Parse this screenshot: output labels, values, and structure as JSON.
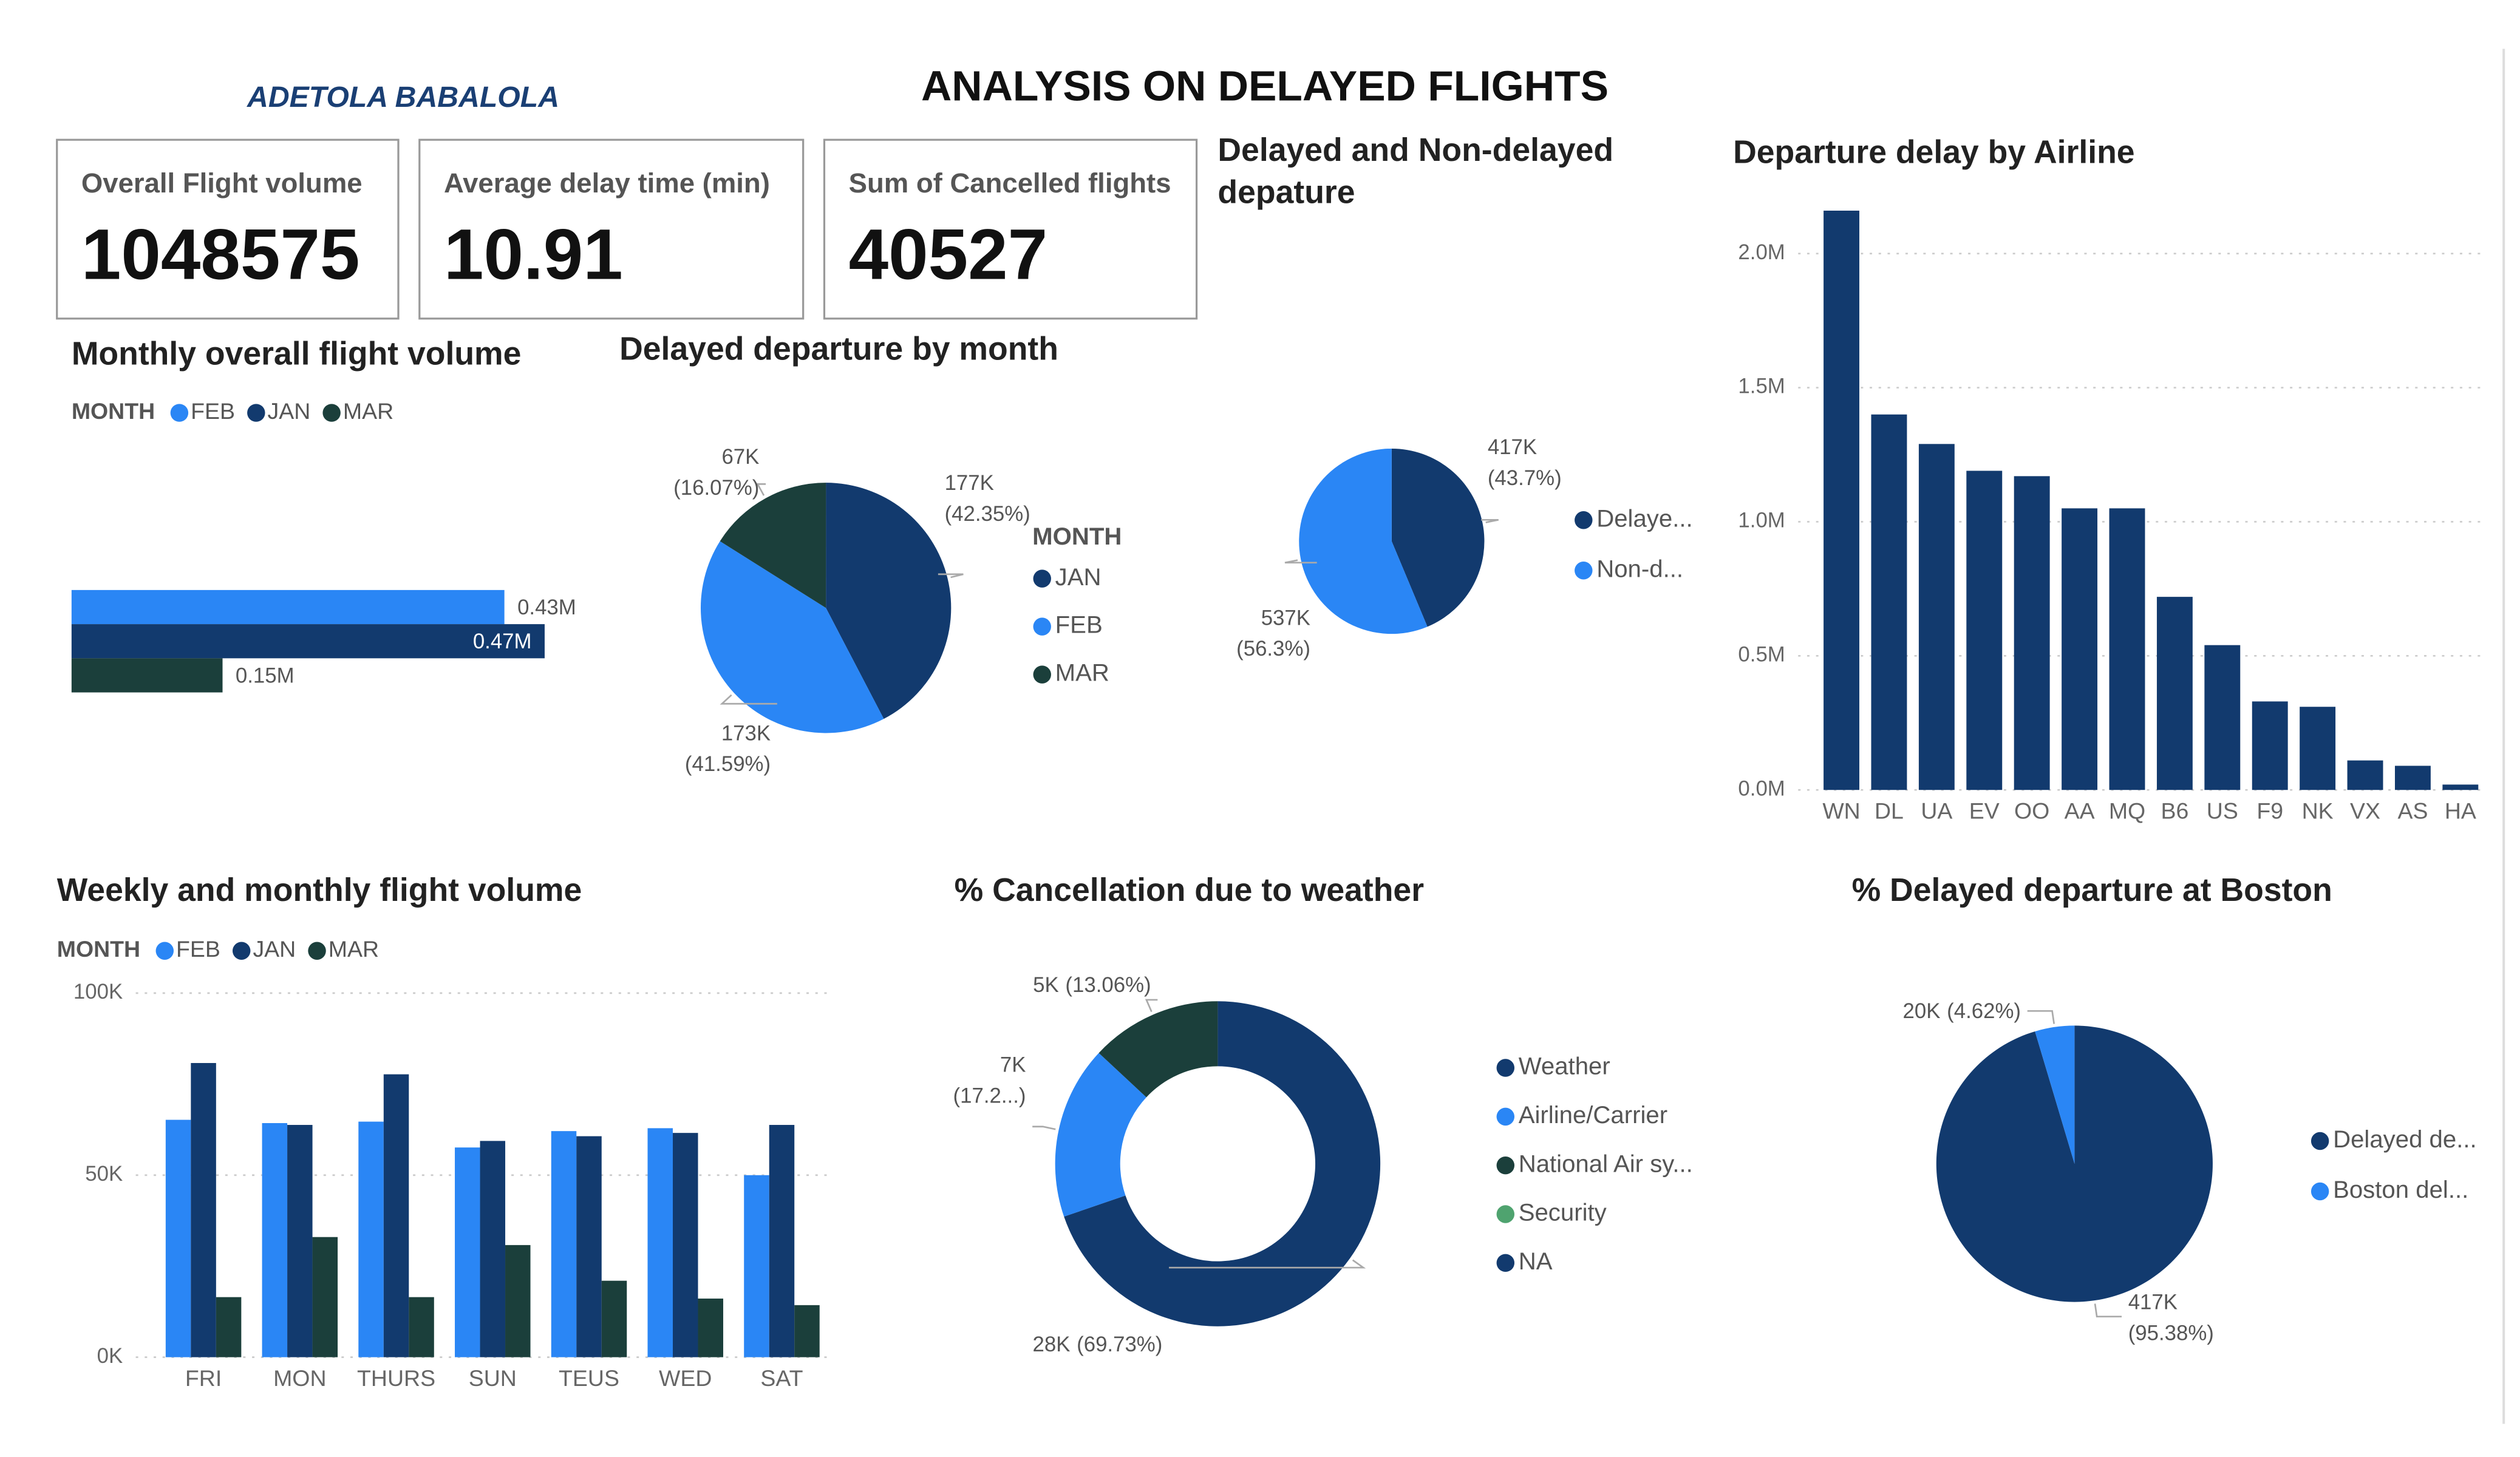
{
  "author": "ADETOLA BABALOLA",
  "title": "ANALYSIS ON DELAYED FLIGHTS",
  "cards": [
    {
      "label": "Overall Flight volume",
      "value": 1048575
    },
    {
      "label": "Average delay time (min)",
      "value": 10.91
    },
    {
      "label": "Sum of Cancelled flights",
      "value": 40527
    }
  ],
  "chart_data": [
    {
      "type": "hbar",
      "title": "Monthly overall flight volume",
      "legend_title": "MONTH",
      "series": [
        {
          "name": "FEB",
          "color": "#2a86f5",
          "values": [
            430000
          ],
          "value_labels": [
            "0.43M"
          ]
        },
        {
          "name": "JAN",
          "color": "#123a6e",
          "values": [
            470000
          ],
          "value_labels": [
            "0.47M"
          ]
        },
        {
          "name": "MAR",
          "color": "#1b3f3b",
          "values": [
            150000
          ],
          "value_labels": [
            "0.15M"
          ]
        }
      ]
    },
    {
      "type": "pie",
      "title": "Delayed departure by month",
      "legend_title": "MONTH",
      "categories": [
        "JAN",
        "FEB",
        "MAR"
      ],
      "values": [
        177000,
        173000,
        67000
      ],
      "value_labels": [
        "177K",
        "173K",
        "67K"
      ],
      "percents": [
        42.35,
        41.59,
        16.07
      ],
      "percent_labels": [
        "(42.35%)",
        "(41.59%)",
        "(16.07%)"
      ],
      "colors": [
        "#123a6e",
        "#2a86f5",
        "#1b3f3b"
      ]
    },
    {
      "type": "pie",
      "title": "Delayed and Non-delayed depature",
      "categories": [
        "Delaye...",
        "Non-d..."
      ],
      "values": [
        417000,
        537000
      ],
      "value_labels": [
        "417K",
        "537K"
      ],
      "percents": [
        43.7,
        56.3
      ],
      "percent_labels": [
        "(43.7%)",
        "(56.3%)"
      ],
      "colors": [
        "#123a6e",
        "#2a86f5"
      ]
    },
    {
      "type": "bar",
      "title": "Departure delay by Airline",
      "categories": [
        "WN",
        "DL",
        "UA",
        "EV",
        "OO",
        "AA",
        "MQ",
        "B6",
        "US",
        "F9",
        "NK",
        "VX",
        "AS",
        "HA"
      ],
      "values": [
        2160000,
        1400000,
        1290000,
        1190000,
        1170000,
        1050000,
        1050000,
        720000,
        540000,
        330000,
        310000,
        110000,
        90000,
        20000
      ],
      "color": "#123a6e",
      "ylim": [
        0,
        2200000
      ],
      "yticks": [
        {
          "value": 0,
          "label": "0.0M"
        },
        {
          "value": 500000,
          "label": "0.5M"
        },
        {
          "value": 1000000,
          "label": "1.0M"
        },
        {
          "value": 1500000,
          "label": "1.5M"
        },
        {
          "value": 2000000,
          "label": "2.0M"
        }
      ],
      "grid": true
    },
    {
      "type": "bar",
      "title": "Weekly and monthly flight volume",
      "legend_title": "MONTH",
      "categories": [
        "FRI",
        "MON",
        "THURS",
        "SUN",
        "TEUS",
        "WED",
        "SAT"
      ],
      "series": [
        {
          "name": "FEB",
          "color": "#2a86f5",
          "values": [
            65200,
            64300,
            64700,
            57600,
            62100,
            62900,
            50000
          ]
        },
        {
          "name": "JAN",
          "color": "#123a6e",
          "values": [
            80800,
            63800,
            77700,
            59400,
            60700,
            61600,
            63800
          ]
        },
        {
          "name": "MAR",
          "color": "#1b3f3b",
          "values": [
            16500,
            33000,
            16500,
            30800,
            21000,
            16100,
            14300
          ]
        }
      ],
      "ylim": [
        0,
        100000
      ],
      "yticks": [
        {
          "value": 0,
          "label": "0K"
        },
        {
          "value": 50000,
          "label": "50K"
        },
        {
          "value": 100000,
          "label": "100K"
        }
      ],
      "grid": true
    },
    {
      "type": "donut",
      "title": "% Cancellation due to weather",
      "categories": [
        "Weather",
        "Airline/Carrier",
        "National Air sy...",
        "Security",
        "NA"
      ],
      "values": [
        28000,
        7000,
        5000,
        null,
        null
      ],
      "value_labels": [
        "28K",
        "7K",
        "5K",
        null,
        null
      ],
      "percents": [
        69.73,
        17.21,
        13.06,
        null,
        null
      ],
      "percent_labels": [
        "(69.73%)",
        "(17.2...)",
        "(13.06%)",
        null,
        null
      ],
      "colors": [
        "#123a6e",
        "#2a86f5",
        "#1b3f3b",
        "#4fa36f",
        "#123a6e"
      ]
    },
    {
      "type": "pie",
      "title": "% Delayed departure at Boston",
      "categories": [
        "Delayed de...",
        "Boston del..."
      ],
      "values": [
        417000,
        20000
      ],
      "value_labels": [
        "417K",
        "20K"
      ],
      "percents": [
        95.38,
        4.62
      ],
      "percent_labels": [
        "(95.38%)",
        "(4.62%)"
      ],
      "colors": [
        "#123a6e",
        "#2a86f5"
      ]
    }
  ]
}
